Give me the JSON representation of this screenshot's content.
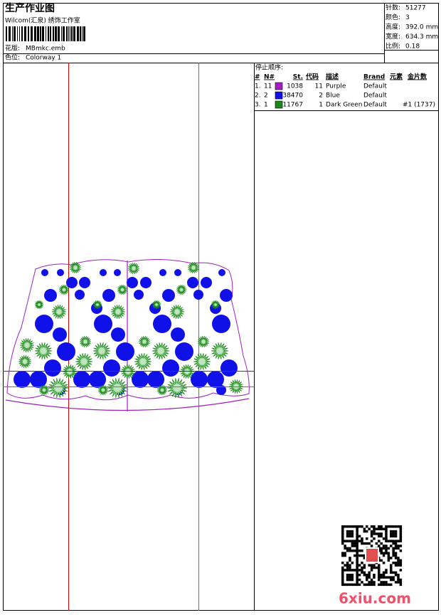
{
  "header": {
    "title": "生产作业图",
    "studio": "Wilcom(汇泉) 绣饰工作室",
    "design_label": "花版:",
    "design_file": "MBmkc.emb",
    "colorway_label": "色位:",
    "colorway": "Colorway 1"
  },
  "info": [
    {
      "label": "针数:",
      "value": "51277"
    },
    {
      "label": "颜色:",
      "value": "3"
    },
    {
      "label": "高度:",
      "value": "392.0 mm"
    },
    {
      "label": "宽度:",
      "value": "634.3 mm"
    },
    {
      "label": "比例:",
      "value": "0.18"
    }
  ],
  "stop_sequence": {
    "title": "停止顺序:",
    "columns": [
      "#",
      "N#",
      "St.",
      "代码",
      "描述",
      "Brand",
      "元素",
      "金片数"
    ],
    "rows": [
      {
        "index": "1.",
        "needle": "11",
        "color": "#a020c0",
        "stitches": "1038",
        "code": "11",
        "description": "Purple",
        "brand": "Default"
      },
      {
        "index": "2.",
        "needle": "2",
        "color": "#1010e8",
        "stitches": "38470",
        "code": "2",
        "description": "Blue",
        "brand": "Default"
      },
      {
        "index": "3.",
        "needle": "1",
        "color": "#1a8a1a",
        "stitches": "11767",
        "code": "1",
        "description": "Dark Green",
        "brand": "Default",
        "sequins": "#1 (1737)"
      }
    ]
  },
  "watermark": "6xiu.com"
}
